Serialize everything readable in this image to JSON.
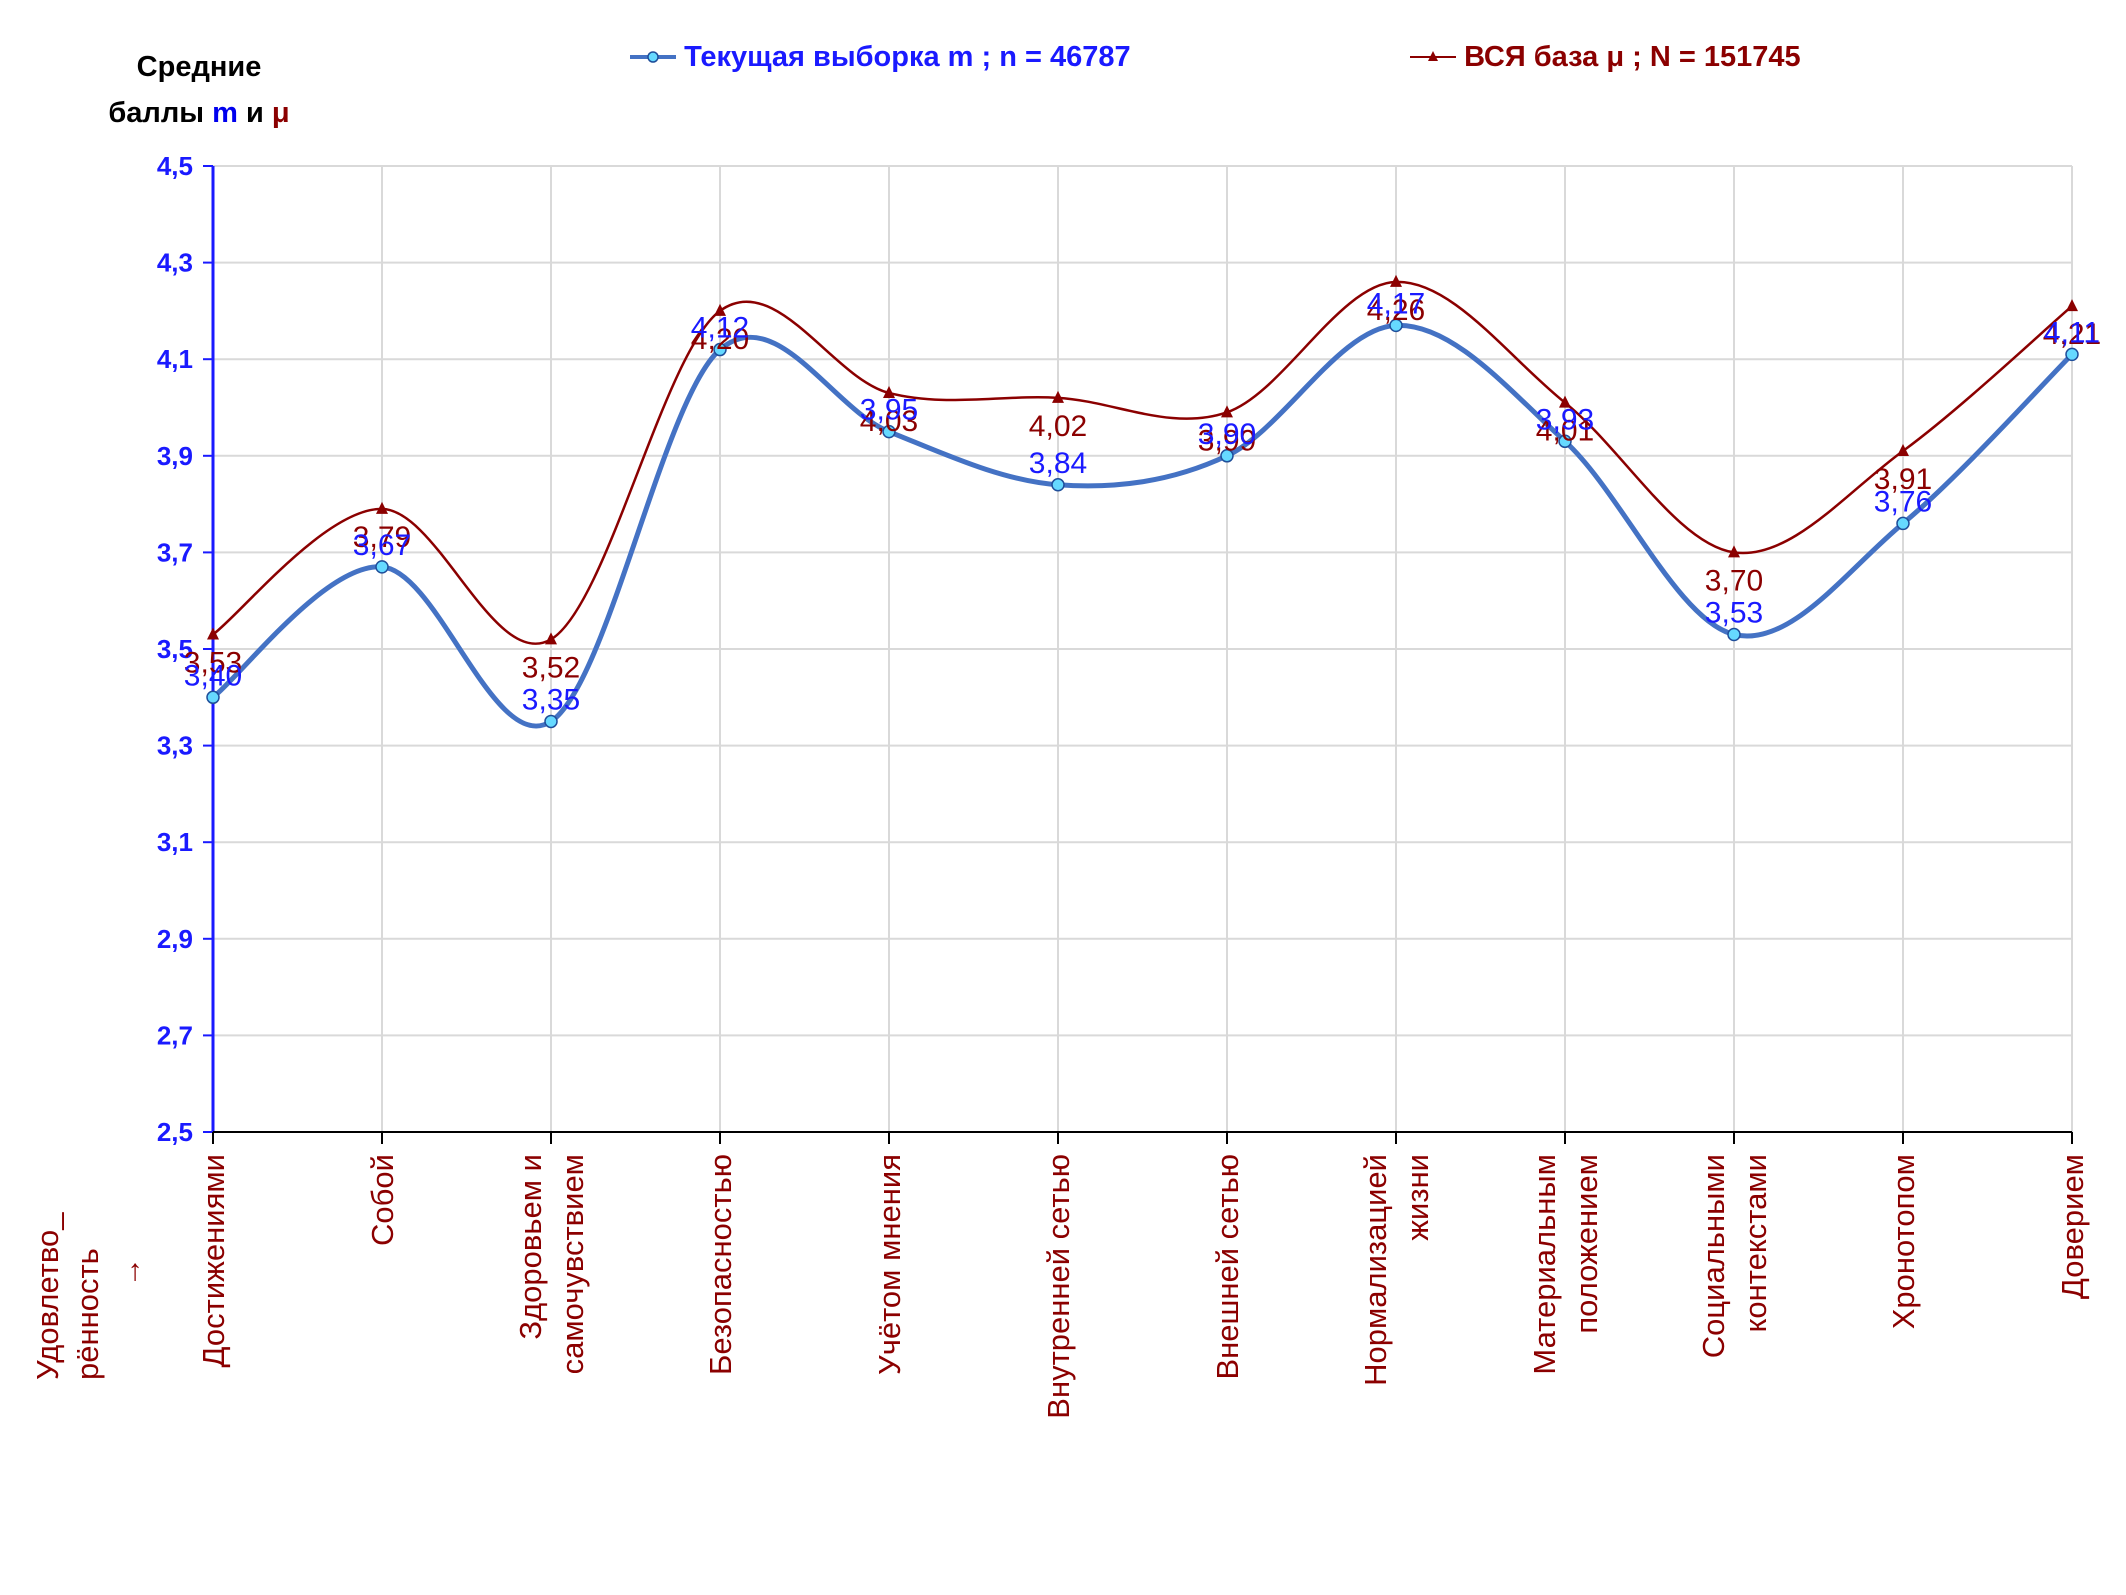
{
  "header": {
    "ylabel_line1": "Средние",
    "ylabel_line2_prefix": "баллы ",
    "ylabel_sym_green": "m",
    "ylabel_and": " и ",
    "ylabel_sym_red": "μ"
  },
  "legend": {
    "current": "Текущая выборка m ; n = 46787",
    "all": "ВСЯ база μ ; N = 151745"
  },
  "corner_label": {
    "line1": "Удовлетво_",
    "line2": "рённость",
    "arrow": "→"
  },
  "colors": {
    "current_line": "#4472c4",
    "current_marker_fill": "#66d9ff",
    "current_label": "#1a1aff",
    "all_line": "#8b0000",
    "all_label": "#8b0000",
    "axis_label": "#1a1aff",
    "category_label": "#8b0000",
    "grid": "#d9d9d9"
  },
  "chart_data": {
    "type": "line",
    "categories": [
      "Достижениями",
      "Собой",
      "Здоровьем и самочувствием",
      "Безопасностью",
      "Учётом мнения",
      "Внутренней сетью",
      "Внешней сетью",
      "Нормализацией жизни",
      "Материальным положением",
      "Социальными контекстами",
      "Хронотопом",
      "Доверием"
    ],
    "category_lines": [
      [
        "Достижениями"
      ],
      [
        "Собой"
      ],
      [
        "Здоровьем и",
        "самочувствием"
      ],
      [
        "Безопасностью"
      ],
      [
        "Учётом мнения"
      ],
      [
        "Внутренней сетью"
      ],
      [
        "Внешней сетью"
      ],
      [
        "Нормализацией",
        "жизни"
      ],
      [
        "Материальным",
        "положением"
      ],
      [
        "Социальными",
        "контекстами"
      ],
      [
        "Хронотопом"
      ],
      [
        "Доверием"
      ]
    ],
    "series": [
      {
        "name": "Текущая выборка m ; n = 46787",
        "values": [
          3.4,
          3.67,
          3.35,
          4.12,
          3.95,
          3.84,
          3.9,
          4.17,
          3.93,
          3.53,
          3.76,
          4.11
        ],
        "labels": [
          "3,40",
          "3,67",
          "3,35",
          "4,12",
          "3,95",
          "3,84",
          "3,90",
          "4,17",
          "3,93",
          "3,53",
          "3,76",
          "4,11"
        ]
      },
      {
        "name": "ВСЯ база μ ; N = 151745",
        "values": [
          3.53,
          3.79,
          3.52,
          4.2,
          4.03,
          4.02,
          3.99,
          4.26,
          4.01,
          3.7,
          3.91,
          4.21
        ],
        "labels": [
          "3,53",
          "3,79",
          "3,52",
          "4,20",
          "4,03",
          "4,02",
          "3,99",
          "4,26",
          "4,01",
          "3,70",
          "3,91",
          "4,21"
        ]
      }
    ],
    "ylim": [
      2.5,
      4.5
    ],
    "yticks": [
      "2,5",
      "2,7",
      "2,9",
      "3,1",
      "3,3",
      "3,5",
      "3,7",
      "3,9",
      "4,1",
      "4,3",
      "4,5"
    ],
    "ytick_values": [
      2.5,
      2.7,
      2.9,
      3.1,
      3.3,
      3.5,
      3.7,
      3.9,
      4.1,
      4.3,
      4.5
    ],
    "grid": true,
    "legend_position": "top"
  }
}
